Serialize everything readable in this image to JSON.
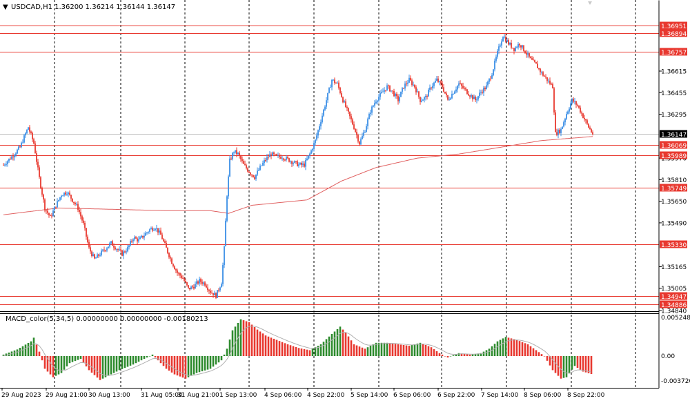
{
  "header": {
    "menu_glyph": "▼",
    "symbol_info": "USDCAD,H1  1.36200 1.36214 1.36144 1.36147"
  },
  "colors": {
    "bull": "#3a8ee6",
    "bear": "#e8382f",
    "level": "#e8382f",
    "ma": "#e06060",
    "macd_up": "#2e8b2e",
    "macd_down": "#e8382f",
    "signal": "#b0b0b0",
    "grid": "#000000"
  },
  "price_axis": {
    "min": 1.3484,
    "max": 1.3706,
    "ticks": [
      "1.36615",
      "1.36455",
      "1.36295",
      "1.35970",
      "1.35810",
      "1.35650",
      "1.35490",
      "1.35165",
      "1.35005",
      "1.34840"
    ],
    "current": {
      "value": 1.36147,
      "label": "1.36147"
    }
  },
  "levels": [
    {
      "value": 1.36951,
      "label": "1.36951"
    },
    {
      "value": 1.36894,
      "label": "1.36894"
    },
    {
      "value": 1.36757,
      "label": "1.36757"
    },
    {
      "value": 1.36069,
      "label": "1.36069"
    },
    {
      "value": 1.35989,
      "label": "1.35989"
    },
    {
      "value": 1.35749,
      "label": "1.35749"
    },
    {
      "value": 1.3533,
      "label": "1.35330"
    },
    {
      "value": 1.34947,
      "label": "1.34947"
    },
    {
      "value": 1.34886,
      "label": "1.34886"
    }
  ],
  "macd": {
    "title": "MACD_color(5,34,5) 0.00000000 0.00000000 -0.00180213",
    "max": 0.0052488,
    "min": -0.0037204,
    "ticks": [
      "0.0052488",
      "0.00",
      "-0.0037204"
    ]
  },
  "time_axis": [
    "29 Aug 2023",
    "29 Aug 21:00",
    "30 Aug 13:00",
    "31 Aug 05:00",
    "31 Aug 21:00",
    "1 Sep 13:00",
    "4 Sep 06:00",
    "4 Sep 22:00",
    "5 Sep 14:00",
    "6 Sep 06:00",
    "6 Sep 22:00",
    "7 Sep 14:00",
    "8 Sep 06:00",
    "8 Sep 22:00"
  ],
  "chart_data": {
    "type": "candlestick",
    "close_path": [
      [
        0,
        1.3592
      ],
      [
        6,
        1.3598
      ],
      [
        12,
        1.3605
      ],
      [
        18,
        1.362
      ],
      [
        22,
        1.3608
      ],
      [
        26,
        1.3582
      ],
      [
        30,
        1.356
      ],
      [
        34,
        1.3553
      ],
      [
        38,
        1.3562
      ],
      [
        42,
        1.357
      ],
      [
        46,
        1.3572
      ],
      [
        50,
        1.3566
      ],
      [
        54,
        1.356
      ],
      [
        58,
        1.3548
      ],
      [
        62,
        1.353
      ],
      [
        66,
        1.3522
      ],
      [
        70,
        1.3526
      ],
      [
        74,
        1.353
      ],
      [
        78,
        1.3534
      ],
      [
        82,
        1.353
      ],
      [
        86,
        1.3526
      ],
      [
        90,
        1.353
      ],
      [
        94,
        1.3538
      ],
      [
        98,
        1.3536
      ],
      [
        102,
        1.354
      ],
      [
        106,
        1.3544
      ],
      [
        110,
        1.3546
      ],
      [
        114,
        1.354
      ],
      [
        118,
        1.353
      ],
      [
        122,
        1.352
      ],
      [
        126,
        1.3512
      ],
      [
        130,
        1.3508
      ],
      [
        134,
        1.35
      ],
      [
        138,
        1.3502
      ],
      [
        142,
        1.3506
      ],
      [
        146,
        1.3504
      ],
      [
        150,
        1.3498
      ],
      [
        154,
        1.3495
      ],
      [
        158,
        1.3505
      ],
      [
        160,
        1.353
      ],
      [
        162,
        1.357
      ],
      [
        164,
        1.3595
      ],
      [
        167,
        1.3602
      ],
      [
        170,
        1.36
      ],
      [
        174,
        1.3592
      ],
      [
        178,
        1.3587
      ],
      [
        182,
        1.3583
      ],
      [
        186,
        1.359
      ],
      [
        190,
        1.3596
      ],
      [
        194,
        1.36
      ],
      [
        198,
        1.3598
      ],
      [
        202,
        1.3598
      ],
      [
        206,
        1.3596
      ],
      [
        210,
        1.3594
      ],
      [
        214,
        1.3592
      ],
      [
        218,
        1.3592
      ],
      [
        222,
        1.36
      ],
      [
        226,
        1.361
      ],
      [
        230,
        1.3625
      ],
      [
        234,
        1.364
      ],
      [
        238,
        1.3655
      ],
      [
        242,
        1.3652
      ],
      [
        246,
        1.364
      ],
      [
        250,
        1.363
      ],
      [
        254,
        1.362
      ],
      [
        258,
        1.3608
      ],
      [
        262,
        1.3618
      ],
      [
        266,
        1.3632
      ],
      [
        270,
        1.364
      ],
      [
        274,
        1.3645
      ],
      [
        278,
        1.365
      ],
      [
        282,
        1.3646
      ],
      [
        286,
        1.364
      ],
      [
        290,
        1.365
      ],
      [
        294,
        1.3655
      ],
      [
        298,
        1.365
      ],
      [
        302,
        1.364
      ],
      [
        306,
        1.3642
      ],
      [
        310,
        1.365
      ],
      [
        314,
        1.3655
      ],
      [
        318,
        1.365
      ],
      [
        322,
        1.364
      ],
      [
        326,
        1.3646
      ],
      [
        330,
        1.3652
      ],
      [
        334,
        1.3648
      ],
      [
        338,
        1.3644
      ],
      [
        342,
        1.364
      ],
      [
        346,
        1.3646
      ],
      [
        350,
        1.365
      ],
      [
        354,
        1.366
      ],
      [
        358,
        1.3675
      ],
      [
        362,
        1.3688
      ],
      [
        366,
        1.3682
      ],
      [
        370,
        1.3678
      ],
      [
        374,
        1.3682
      ],
      [
        378,
        1.3676
      ],
      [
        382,
        1.367
      ],
      [
        386,
        1.3666
      ],
      [
        390,
        1.366
      ],
      [
        394,
        1.3655
      ],
      [
        398,
        1.365
      ],
      [
        400,
        1.3615
      ],
      [
        404,
        1.3618
      ],
      [
        408,
        1.363
      ],
      [
        412,
        1.364
      ],
      [
        416,
        1.3636
      ],
      [
        420,
        1.3628
      ],
      [
        424,
        1.362
      ],
      [
        427,
        1.3615
      ]
    ],
    "ma_path": [
      [
        0,
        1.3555
      ],
      [
        40,
        1.356
      ],
      [
        80,
        1.3559
      ],
      [
        120,
        1.3558
      ],
      [
        150,
        1.3558
      ],
      [
        163,
        1.3556
      ],
      [
        180,
        1.3562
      ],
      [
        220,
        1.3566
      ],
      [
        245,
        1.358
      ],
      [
        270,
        1.359
      ],
      [
        300,
        1.3597
      ],
      [
        330,
        1.36
      ],
      [
        360,
        1.3605
      ],
      [
        390,
        1.361
      ],
      [
        427,
        1.3613
      ]
    ],
    "macd_hist": [
      [
        0,
        0.0002
      ],
      [
        10,
        0.0009
      ],
      [
        20,
        0.002
      ],
      [
        22,
        0.0025
      ],
      [
        26,
        0.0006
      ],
      [
        30,
        -0.0018
      ],
      [
        36,
        -0.003
      ],
      [
        42,
        -0.0024
      ],
      [
        48,
        -0.001
      ],
      [
        56,
        -0.0004
      ],
      [
        62,
        -0.002
      ],
      [
        70,
        -0.0034
      ],
      [
        76,
        -0.0028
      ],
      [
        84,
        -0.002
      ],
      [
        94,
        -0.0012
      ],
      [
        102,
        -0.0004
      ],
      [
        108,
        0.0002
      ],
      [
        112,
        -0.0006
      ],
      [
        118,
        -0.0018
      ],
      [
        124,
        -0.0026
      ],
      [
        132,
        -0.0032
      ],
      [
        140,
        -0.0024
      ],
      [
        150,
        -0.0018
      ],
      [
        158,
        -0.0006
      ],
      [
        162,
        0.001
      ],
      [
        166,
        0.0035
      ],
      [
        172,
        0.005
      ],
      [
        178,
        0.0046
      ],
      [
        184,
        0.0036
      ],
      [
        190,
        0.0028
      ],
      [
        198,
        0.0022
      ],
      [
        206,
        0.0016
      ],
      [
        214,
        0.0011
      ],
      [
        222,
        0.0008
      ],
      [
        230,
        0.0016
      ],
      [
        238,
        0.003
      ],
      [
        244,
        0.004
      ],
      [
        248,
        0.0032
      ],
      [
        254,
        0.0016
      ],
      [
        262,
        0.001
      ],
      [
        270,
        0.0018
      ],
      [
        278,
        0.0018
      ],
      [
        286,
        0.0016
      ],
      [
        294,
        0.0014
      ],
      [
        302,
        0.0018
      ],
      [
        310,
        0.0012
      ],
      [
        316,
        0.0004
      ],
      [
        322,
        -0.0002
      ],
      [
        330,
        0.0004
      ],
      [
        338,
        0.0002
      ],
      [
        346,
        0.0004
      ],
      [
        352,
        0.001
      ],
      [
        358,
        0.002
      ],
      [
        364,
        0.0026
      ],
      [
        372,
        0.0022
      ],
      [
        380,
        0.0016
      ],
      [
        386,
        0.0008
      ],
      [
        392,
        0.0
      ],
      [
        398,
        -0.002
      ],
      [
        404,
        -0.0032
      ],
      [
        408,
        -0.003
      ],
      [
        414,
        -0.0014
      ],
      [
        420,
        -0.0022
      ],
      [
        427,
        -0.0026
      ]
    ]
  }
}
